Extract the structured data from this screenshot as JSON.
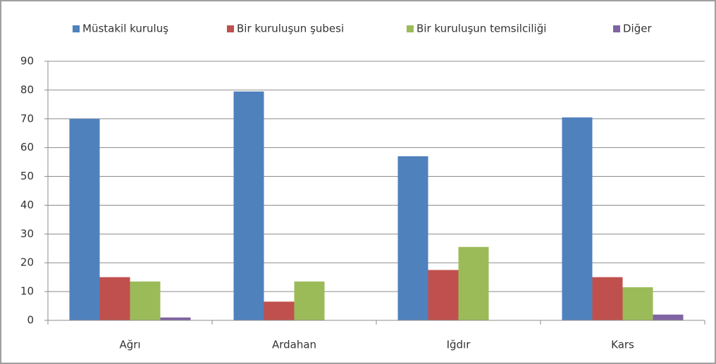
{
  "chart_data": {
    "type": "bar",
    "categories": [
      "Ağrı",
      "Ardahan",
      "Iğdır",
      "Kars"
    ],
    "series": [
      {
        "name": "Müstakil kuruluş",
        "color": "#4f81bd",
        "values": [
          70,
          79.5,
          57,
          70.5
        ]
      },
      {
        "name": "Bir kuruluşun şubesi",
        "color": "#c0504d",
        "values": [
          15,
          6.5,
          17.5,
          15
        ]
      },
      {
        "name": "Bir kuruluşun temsilciliği",
        "color": "#9bbb59",
        "values": [
          13.5,
          13.5,
          25.5,
          11.5
        ]
      },
      {
        "name": "Diğer",
        "color": "#8064a2",
        "values": [
          1,
          0,
          0,
          2
        ]
      }
    ],
    "ylim": [
      0,
      90
    ],
    "yticks": [
      0,
      10,
      20,
      30,
      40,
      50,
      60,
      70,
      80,
      90
    ],
    "grid": true
  }
}
